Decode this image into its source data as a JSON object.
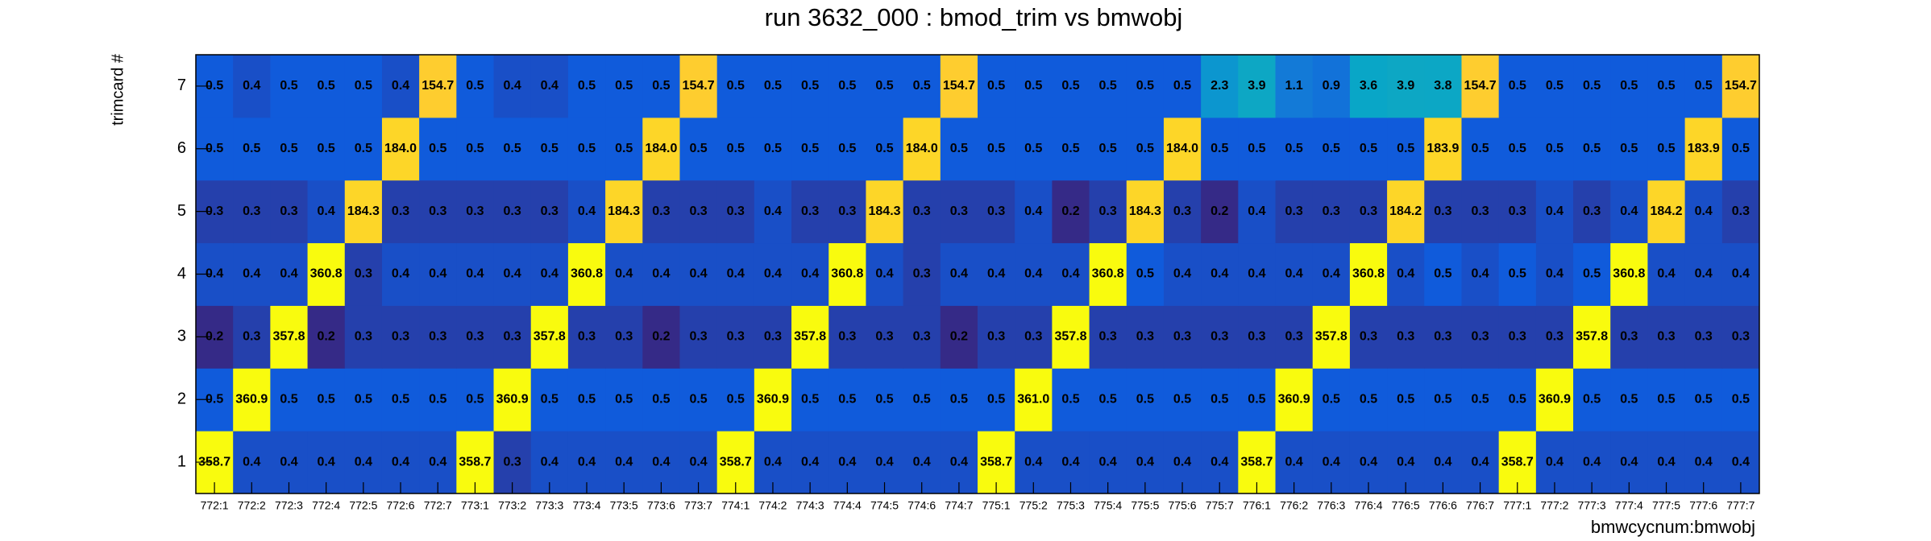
{
  "chart_data": {
    "type": "heatmap",
    "title": "run 3632_000 : bmod_trim vs bmwobj",
    "x_label": "bmwcycnum:bmwobj",
    "y_label": "trimcard #",
    "categories": [
      "772:1",
      "772:2",
      "772:3",
      "772:4",
      "772:5",
      "772:6",
      "772:7",
      "773:1",
      "773:2",
      "773:3",
      "773:4",
      "773:5",
      "773:6",
      "773:7",
      "774:1",
      "774:2",
      "774:3",
      "774:4",
      "774:5",
      "774:6",
      "774:7",
      "775:1",
      "775:2",
      "775:3",
      "775:4",
      "775:5",
      "775:6",
      "775:7",
      "776:1",
      "776:2",
      "776:3",
      "776:4",
      "776:5",
      "776:6",
      "776:7",
      "777:1",
      "777:2",
      "777:3",
      "777:4",
      "777:5",
      "777:6",
      "777:7"
    ],
    "y": [
      1,
      2,
      3,
      4,
      5,
      6,
      7
    ],
    "log_color": true,
    "colorscale": [
      "#352a87",
      "#0f5cdd",
      "#1481d6",
      "#06a4ca",
      "#2eb7a4",
      "#87bf77",
      "#d1bb59",
      "#fec832",
      "#f9fb0e"
    ],
    "z": [
      [
        358.7,
        0.4,
        0.4,
        0.4,
        0.4,
        0.4,
        0.4,
        358.7,
        0.3,
        0.4,
        0.4,
        0.4,
        0.4,
        0.4,
        358.7,
        0.4,
        0.4,
        0.4,
        0.4,
        0.4,
        0.4,
        358.7,
        0.4,
        0.4,
        0.4,
        0.4,
        0.4,
        0.4,
        358.7,
        0.4,
        0.4,
        0.4,
        0.4,
        0.4,
        0.4,
        358.7,
        0.4,
        0.4,
        0.4,
        0.4,
        0.4,
        0.4
      ],
      [
        0.5,
        360.9,
        0.5,
        0.5,
        0.5,
        0.5,
        0.5,
        0.5,
        360.9,
        0.5,
        0.5,
        0.5,
        0.5,
        0.5,
        0.5,
        360.9,
        0.5,
        0.5,
        0.5,
        0.5,
        0.5,
        0.5,
        361.0,
        0.5,
        0.5,
        0.5,
        0.5,
        0.5,
        0.5,
        360.9,
        0.5,
        0.5,
        0.5,
        0.5,
        0.5,
        0.5,
        360.9,
        0.5,
        0.5,
        0.5,
        0.5,
        0.5
      ],
      [
        0.2,
        0.3,
        357.8,
        0.2,
        0.3,
        0.3,
        0.3,
        0.3,
        0.3,
        357.8,
        0.3,
        0.3,
        0.2,
        0.3,
        0.3,
        0.3,
        357.8,
        0.3,
        0.3,
        0.3,
        0.2,
        0.3,
        0.3,
        357.8,
        0.3,
        0.3,
        0.3,
        0.3,
        0.3,
        0.3,
        357.8,
        0.3,
        0.3,
        0.3,
        0.3,
        0.3,
        0.3,
        357.8,
        0.3,
        0.3,
        0.3,
        0.3
      ],
      [
        0.4,
        0.4,
        0.4,
        360.8,
        0.3,
        0.4,
        0.4,
        0.4,
        0.4,
        0.4,
        360.8,
        0.4,
        0.4,
        0.4,
        0.4,
        0.4,
        0.4,
        360.8,
        0.4,
        0.3,
        0.4,
        0.4,
        0.4,
        0.4,
        360.8,
        0.5,
        0.4,
        0.4,
        0.4,
        0.4,
        0.4,
        360.8,
        0.4,
        0.5,
        0.4,
        0.5,
        0.4,
        0.5,
        360.8,
        0.4,
        0.4,
        0.4
      ],
      [
        0.3,
        0.3,
        0.3,
        0.4,
        184.3,
        0.3,
        0.3,
        0.3,
        0.3,
        0.3,
        0.4,
        184.3,
        0.3,
        0.3,
        0.3,
        0.4,
        0.3,
        0.3,
        184.3,
        0.3,
        0.3,
        0.3,
        0.4,
        0.2,
        0.3,
        184.3,
        0.3,
        0.2,
        0.4,
        0.3,
        0.3,
        0.3,
        184.2,
        0.3,
        0.3,
        0.3,
        0.4,
        0.3,
        0.4,
        184.2,
        0.4,
        0.3
      ],
      [
        0.5,
        0.5,
        0.5,
        0.5,
        0.5,
        184.0,
        0.5,
        0.5,
        0.5,
        0.5,
        0.5,
        0.5,
        184.0,
        0.5,
        0.5,
        0.5,
        0.5,
        0.5,
        0.5,
        184.0,
        0.5,
        0.5,
        0.5,
        0.5,
        0.5,
        0.5,
        184.0,
        0.5,
        0.5,
        0.5,
        0.5,
        0.5,
        0.5,
        183.9,
        0.5,
        0.5,
        0.5,
        0.5,
        0.5,
        0.5,
        183.9,
        0.5
      ],
      [
        0.5,
        0.4,
        0.5,
        0.5,
        0.5,
        0.4,
        154.7,
        0.5,
        0.4,
        0.4,
        0.5,
        0.5,
        0.5,
        154.7,
        0.5,
        0.5,
        0.5,
        0.5,
        0.5,
        0.5,
        154.7,
        0.5,
        0.5,
        0.5,
        0.5,
        0.5,
        0.5,
        2.3,
        3.9,
        1.1,
        0.9,
        3.6,
        3.9,
        3.8,
        154.7,
        0.5,
        0.5,
        0.5,
        0.5,
        0.5,
        0.5,
        154.7
      ]
    ],
    "value_labels": [
      [
        "358.7",
        "0.4",
        "0.4",
        "0.4",
        "0.4",
        "0.4",
        "0.4",
        "358.7",
        "0.3",
        "0.4",
        "0.4",
        "0.4",
        "0.4",
        "0.4",
        "358.7",
        "0.4",
        "0.4",
        "0.4",
        "0.4",
        "0.4",
        "0.4",
        "358.7",
        "0.4",
        "0.4",
        "0.4",
        "0.4",
        "0.4",
        "0.4",
        "358.7",
        "0.4",
        "0.4",
        "0.4",
        "0.4",
        "0.4",
        "0.4",
        "358.7",
        "0.4",
        "0.4",
        "0.4",
        "0.4",
        "0.4",
        "0.4"
      ],
      [
        "0.5",
        "360.9",
        "0.5",
        "0.5",
        "0.5",
        "0.5",
        "0.5",
        "0.5",
        "360.9",
        "0.5",
        "0.5",
        "0.5",
        "0.5",
        "0.5",
        "0.5",
        "360.9",
        "0.5",
        "0.5",
        "0.5",
        "0.5",
        "0.5",
        "0.5",
        "361.0",
        "0.5",
        "0.5",
        "0.5",
        "0.5",
        "0.5",
        "0.5",
        "360.9",
        "0.5",
        "0.5",
        "0.5",
        "0.5",
        "0.5",
        "0.5",
        "360.9",
        "0.5",
        "0.5",
        "0.5",
        "0.5",
        "0.5"
      ],
      [
        "0.2",
        "0.3",
        "357.8",
        "0.2",
        "0.3",
        "0.3",
        "0.3",
        "0.3",
        "0.3",
        "357.8",
        "0.3",
        "0.3",
        "0.2",
        "0.3",
        "0.3",
        "0.3",
        "357.8",
        "0.3",
        "0.3",
        "0.3",
        "0.2",
        "0.3",
        "0.3",
        "357.8",
        "0.3",
        "0.3",
        "0.3",
        "0.3",
        "0.3",
        "0.3",
        "357.8",
        "0.3",
        "0.3",
        "0.3",
        "0.3",
        "0.3",
        "0.3",
        "357.8",
        "0.3",
        "0.3",
        "0.3",
        "0.3"
      ],
      [
        "0.4",
        "0.4",
        "0.4",
        "360.8",
        "0.3",
        "0.4",
        "0.4",
        "0.4",
        "0.4",
        "0.4",
        "360.8",
        "0.4",
        "0.4",
        "0.4",
        "0.4",
        "0.4",
        "0.4",
        "360.8",
        "0.4",
        "0.3",
        "0.4",
        "0.4",
        "0.4",
        "0.4",
        "360.8",
        "0.5",
        "0.4",
        "0.4",
        "0.4",
        "0.4",
        "0.4",
        "360.8",
        "0.4",
        "0.5",
        "0.4",
        "0.5",
        "0.4",
        "0.5",
        "360.8",
        "0.4",
        "0.4",
        "0.4"
      ],
      [
        "0.3",
        "0.3",
        "0.3",
        "0.4",
        "184.3",
        "0.3",
        "0.3",
        "0.3",
        "0.3",
        "0.3",
        "0.4",
        "184.3",
        "0.3",
        "0.3",
        "0.3",
        "0.4",
        "0.3",
        "0.3",
        "184.3",
        "0.3",
        "0.3",
        "0.3",
        "0.4",
        "0.2",
        "0.3",
        "184.3",
        "0.3",
        "0.2",
        "0.4",
        "0.3",
        "0.3",
        "0.3",
        "184.2",
        "0.3",
        "0.3",
        "0.3",
        "0.4",
        "0.3",
        "0.4",
        "184.2",
        "0.4",
        "0.3"
      ],
      [
        "0.5",
        "0.5",
        "0.5",
        "0.5",
        "0.5",
        "184.0",
        "0.5",
        "0.5",
        "0.5",
        "0.5",
        "0.5",
        "0.5",
        "184.0",
        "0.5",
        "0.5",
        "0.5",
        "0.5",
        "0.5",
        "0.5",
        "184.0",
        "0.5",
        "0.5",
        "0.5",
        "0.5",
        "0.5",
        "0.5",
        "184.0",
        "0.5",
        "0.5",
        "0.5",
        "0.5",
        "0.5",
        "0.5",
        "183.9",
        "0.5",
        "0.5",
        "0.5",
        "0.5",
        "0.5",
        "0.5",
        "183.9",
        "0.5"
      ],
      [
        "0.5",
        "0.4",
        "0.5",
        "0.5",
        "0.5",
        "0.4",
        "154.7",
        "0.5",
        "0.4",
        "0.4",
        "0.5",
        "0.5",
        "0.5",
        "154.7",
        "0.5",
        "0.5",
        "0.5",
        "0.5",
        "0.5",
        "0.5",
        "154.7",
        "0.5",
        "0.5",
        "0.5",
        "0.5",
        "0.5",
        "0.5",
        "2.3",
        "3.9",
        "1.1",
        "0.9",
        "3.6",
        "3.9",
        "3.8",
        "154.7",
        "0.5",
        "0.5",
        "0.5",
        "0.5",
        "0.5",
        "0.5",
        "154.7"
      ]
    ]
  }
}
